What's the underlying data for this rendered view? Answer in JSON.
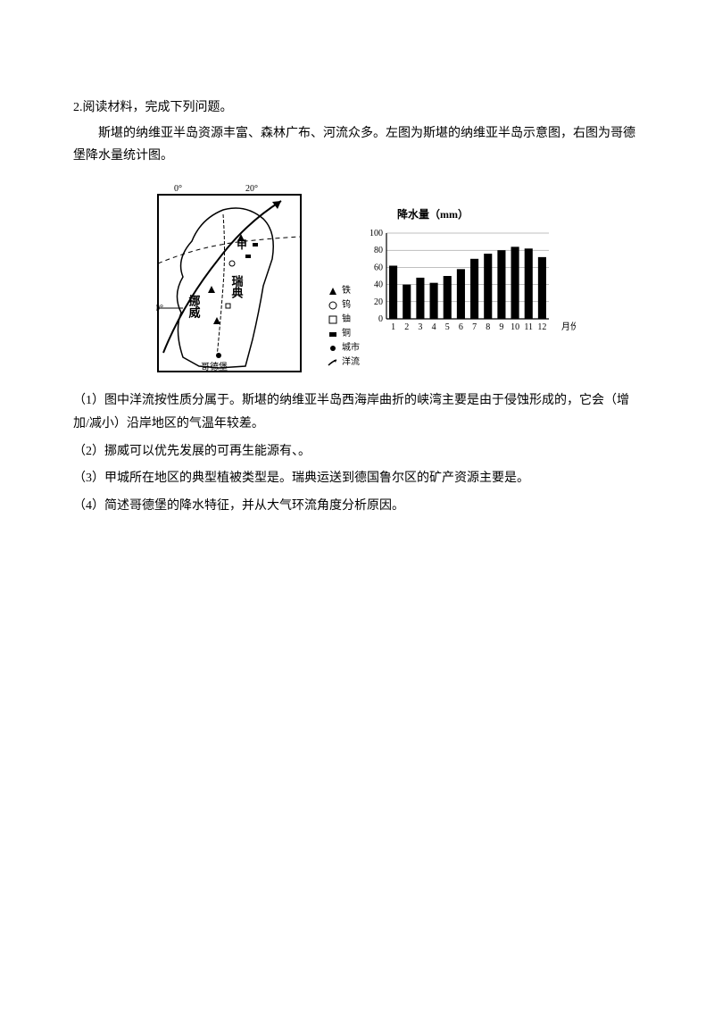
{
  "question": {
    "number": "2.",
    "header": "阅读材料，完成下列问题。",
    "intro": "斯堪的纳维亚半岛资源丰富、森林广布、河流众多。左图为斯堪的纳维亚半岛示意图，右图为哥德堡降水量统计图。"
  },
  "map": {
    "lon_labels": [
      "0°",
      "20°"
    ],
    "lat_label": "60°",
    "country_labels": {
      "norway": "挪威",
      "sweden": "瑞典",
      "jia": "甲"
    },
    "city_label": "哥德堡",
    "legend": [
      {
        "symbol": "triangle",
        "label": "铁"
      },
      {
        "symbol": "circle",
        "label": "钨"
      },
      {
        "symbol": "square",
        "label": "铀"
      },
      {
        "symbol": "rect-solid",
        "label": "铜"
      },
      {
        "symbol": "dot",
        "label": "城市"
      },
      {
        "symbol": "arrow",
        "label": "洋流"
      }
    ],
    "colors": {
      "stroke": "#000000",
      "fill": "#ffffff"
    }
  },
  "chart": {
    "type": "bar",
    "title": "降水量（mm）",
    "xlabel": "月份",
    "categories": [
      "1",
      "2",
      "3",
      "4",
      "5",
      "6",
      "7",
      "8",
      "9",
      "10",
      "11",
      "12"
    ],
    "values": [
      62,
      40,
      48,
      42,
      50,
      58,
      70,
      76,
      80,
      84,
      82,
      72
    ],
    "ylim": [
      0,
      100
    ],
    "ytick_step": 20,
    "yticks": [
      "0",
      "20",
      "40",
      "60",
      "80",
      "100"
    ],
    "bar_color": "#000000",
    "axis_color": "#000000",
    "grid_color": "#808080",
    "bar_width": 0.6,
    "font_size": 10
  },
  "subquestions": {
    "q1": "（1）图中洋流按性质分属于。斯堪的纳维亚半岛西海岸曲折的峡湾主要是由于侵蚀形成的，它会（增加/减小）沿岸地区的气温年较差。",
    "q2": "（2）挪威可以优先发展的可再生能源有、。",
    "q3": "（3）甲城所在地区的典型植被类型是。瑞典运送到德国鲁尔区的矿产资源主要是。",
    "q4": "（4）简述哥德堡的降水特征，并从大气环流角度分析原因。"
  }
}
